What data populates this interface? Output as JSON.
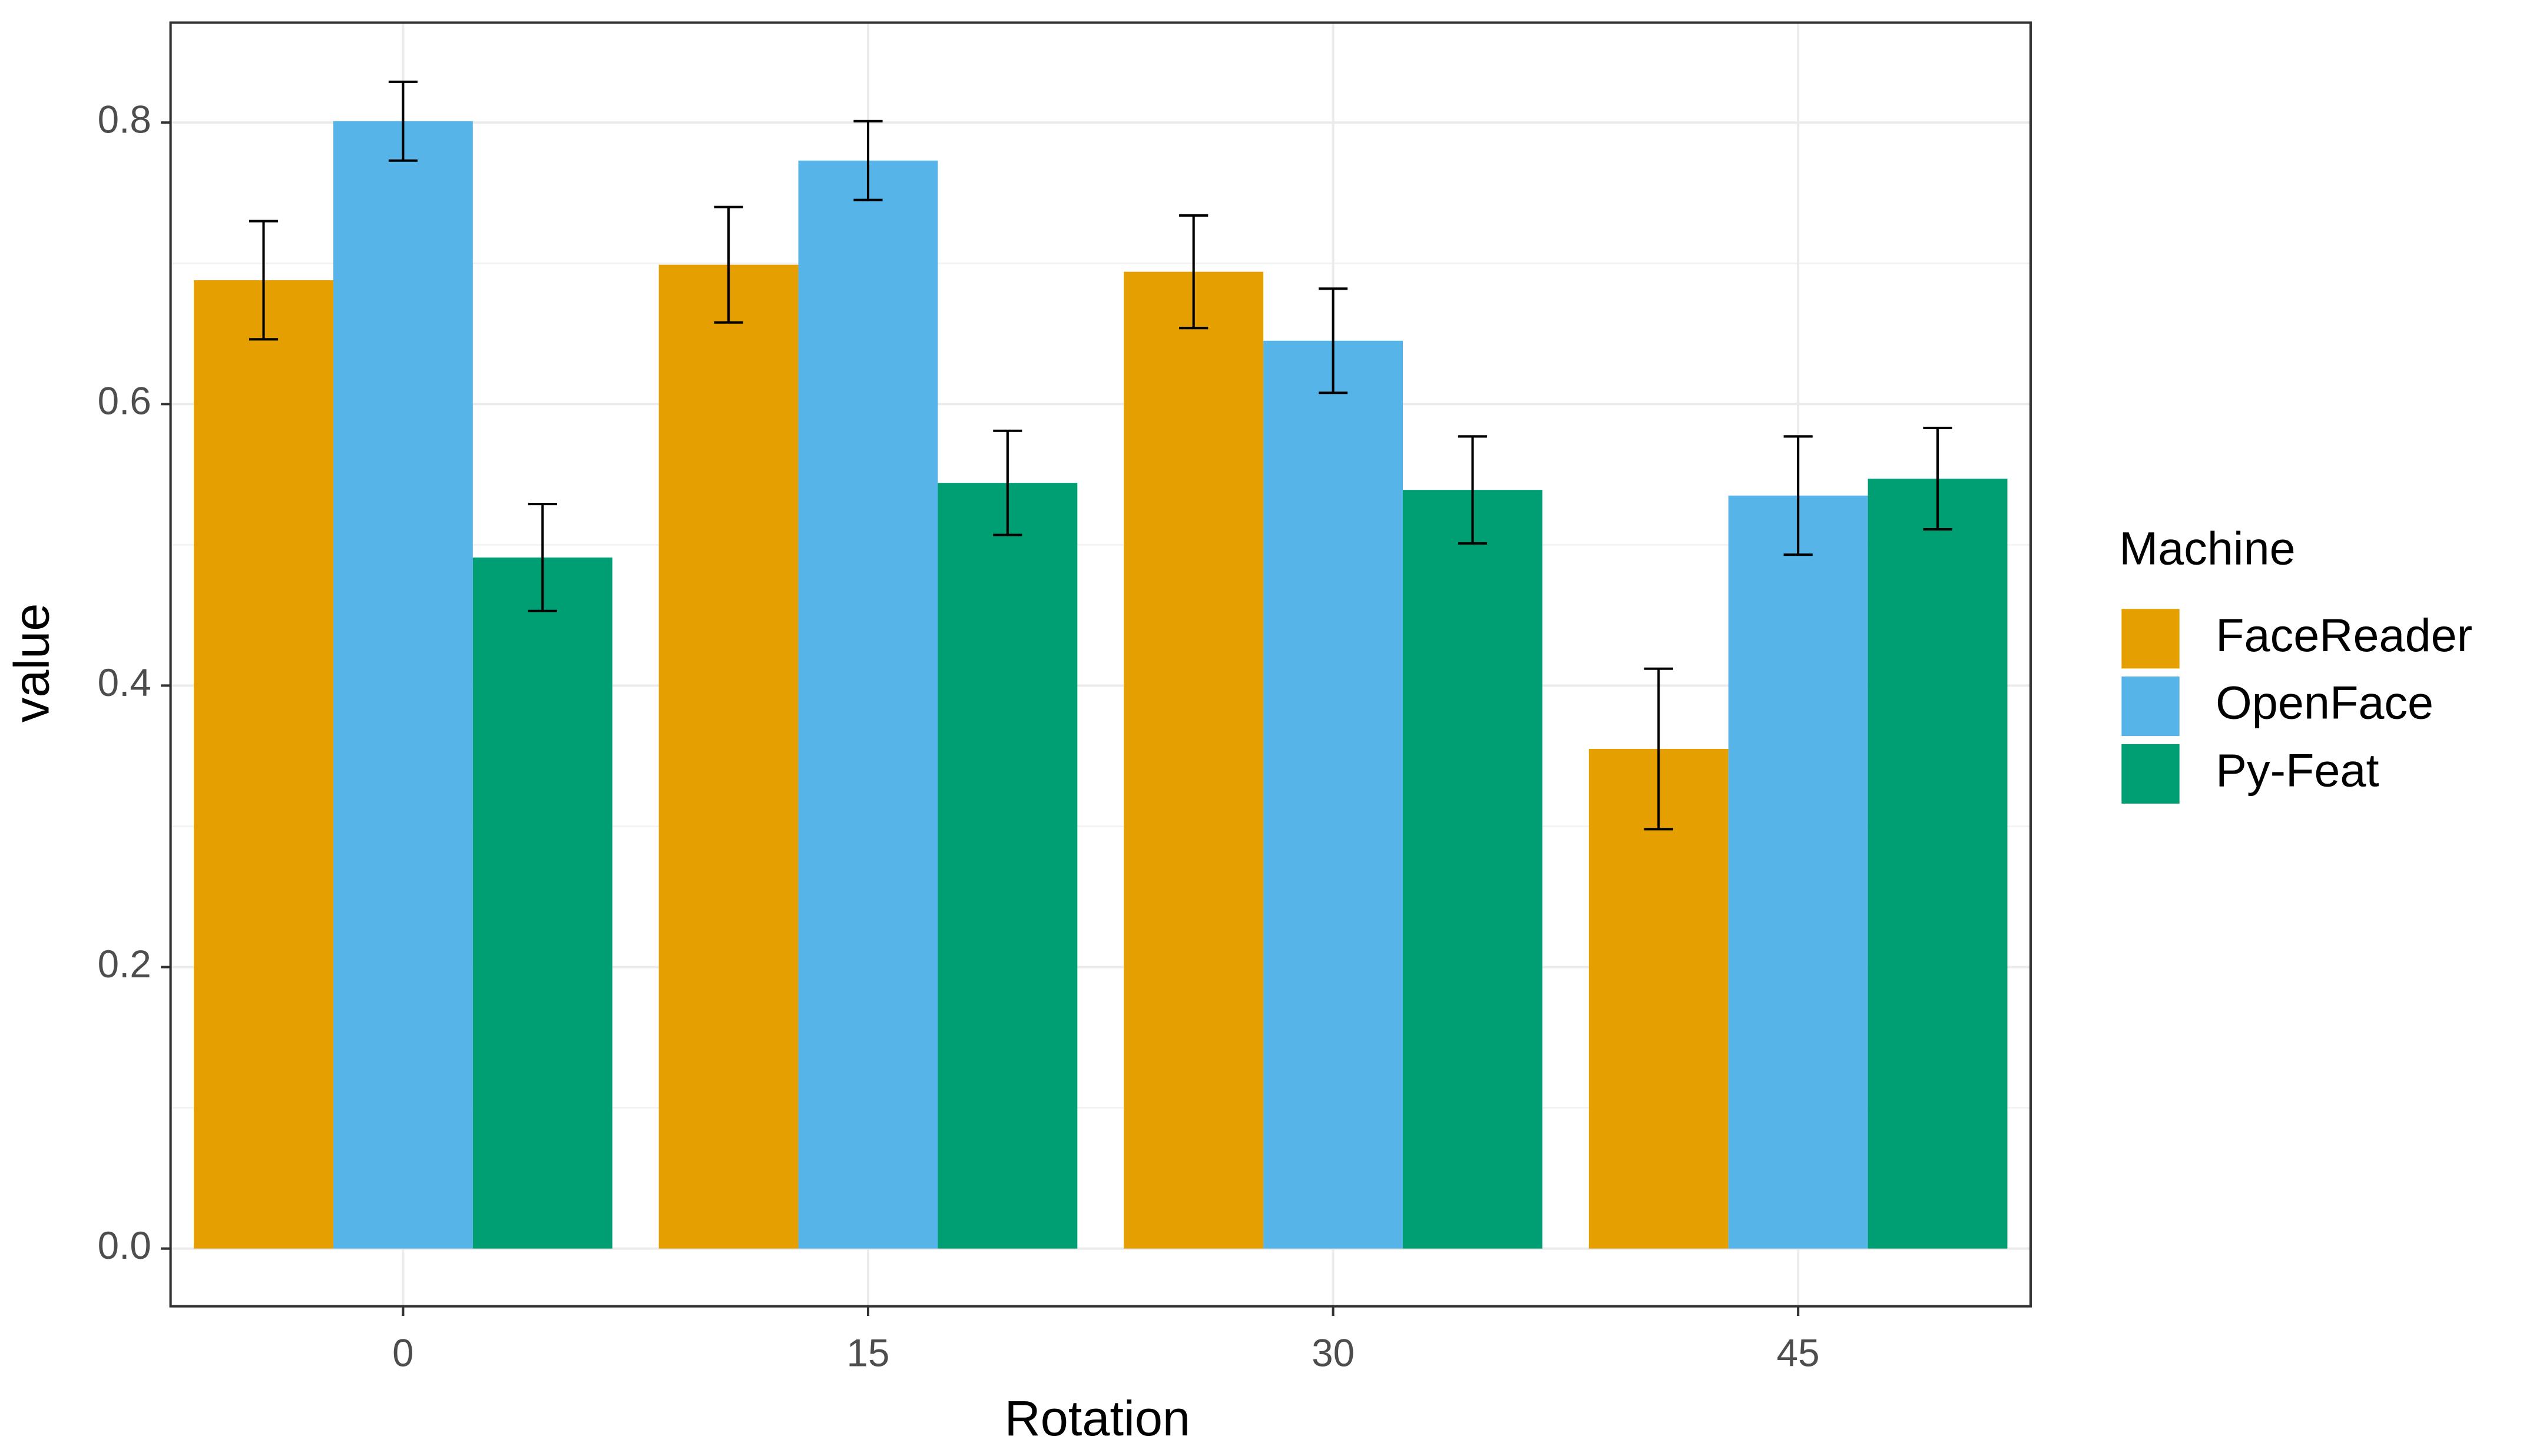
{
  "chart_data": {
    "type": "bar",
    "x_label": "Rotation",
    "y_label": "value",
    "categories": [
      "0",
      "15",
      "30",
      "45"
    ],
    "legend_title": "Machine",
    "legend_position": "right",
    "series": [
      {
        "name": "FaceReader",
        "color": "#e69f00",
        "values": [
          0.688,
          0.699,
          0.694,
          0.355
        ],
        "errors": [
          0.042,
          0.041,
          0.04,
          0.057
        ]
      },
      {
        "name": "OpenFace",
        "color": "#56b4e9",
        "values": [
          0.801,
          0.773,
          0.645,
          0.535
        ],
        "errors": [
          0.028,
          0.028,
          0.037,
          0.042
        ]
      },
      {
        "name": "Py-Feat",
        "color": "#009e73",
        "values": [
          0.491,
          0.544,
          0.539,
          0.547
        ],
        "errors": [
          0.038,
          0.037,
          0.038,
          0.036
        ]
      }
    ],
    "ylim": [
      -0.041,
      0.871
    ],
    "yticks": [
      {
        "value": 0,
        "label": "0.0"
      },
      0.2,
      0.4,
      0.6,
      0.8
    ],
    "grid": true
  }
}
